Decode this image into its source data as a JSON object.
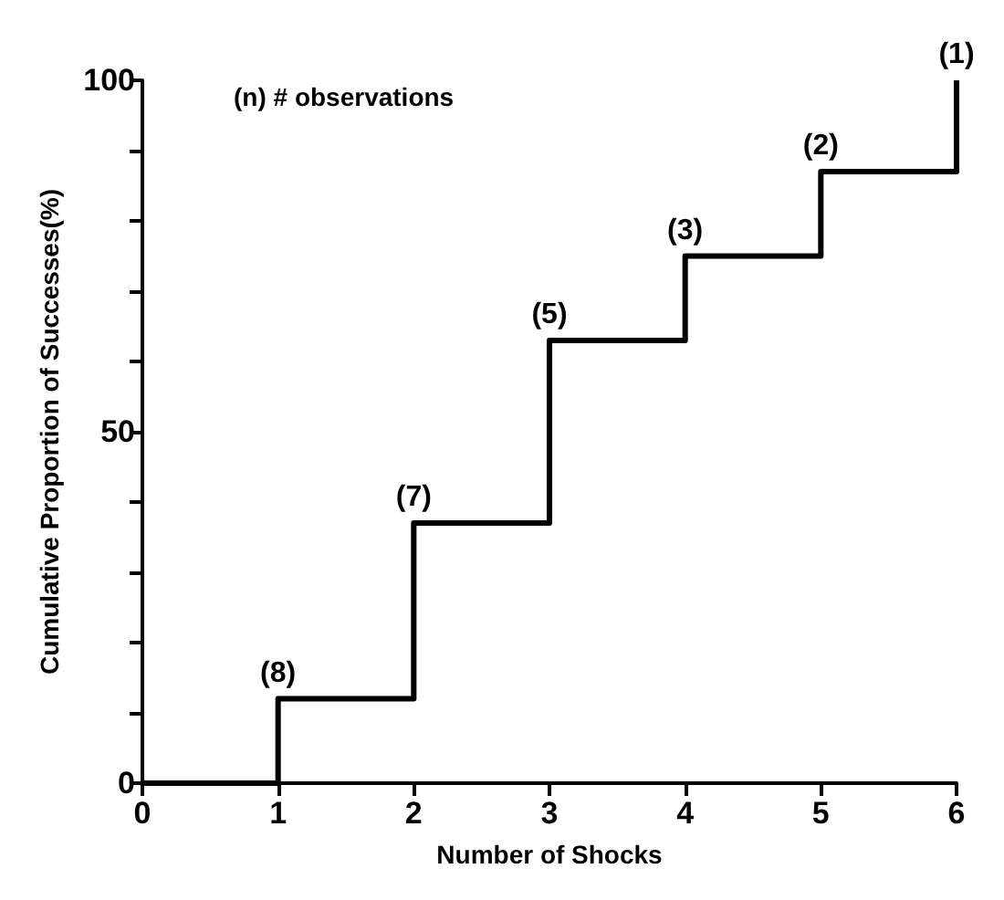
{
  "chart_data": {
    "type": "step",
    "xlabel": "Number of Shocks",
    "ylabel": "Cumulative Proportion of Successes(%)",
    "x": [
      0,
      1,
      2,
      3,
      4,
      5,
      6
    ],
    "series": [
      {
        "color": "#000000",
        "values": [
          0,
          12,
          37,
          63,
          75,
          87,
          100
        ]
      }
    ],
    "xlim": [
      0,
      6
    ],
    "xticks": [
      0,
      1,
      2,
      3,
      4,
      5,
      6
    ],
    "ylim": [
      0,
      100
    ],
    "yticks": [
      0,
      {
        "value": 10,
        "label": null
      },
      {
        "value": 20,
        "label": null
      },
      {
        "value": 30,
        "label": null
      },
      {
        "value": 40,
        "label": null
      },
      50,
      {
        "value": 60,
        "label": null
      },
      {
        "value": 70,
        "label": null
      },
      {
        "value": 80,
        "label": null
      },
      {
        "value": 90,
        "label": null
      },
      100
    ],
    "annotations": [
      "(n) # observations",
      {
        "text": "(8)",
        "x": 1,
        "y": 12
      },
      {
        "text": "(7)",
        "x": 2,
        "y": 37
      },
      {
        "text": "(5)",
        "x": 3,
        "y": 63
      },
      {
        "text": "(3)",
        "x": 4,
        "y": 75
      },
      {
        "text": "(2)",
        "x": 5,
        "y": 87
      },
      {
        "text": "(1)",
        "x": 6,
        "y": 100
      }
    ],
    "grid": false,
    "marker": "none",
    "line_style": "solid"
  }
}
